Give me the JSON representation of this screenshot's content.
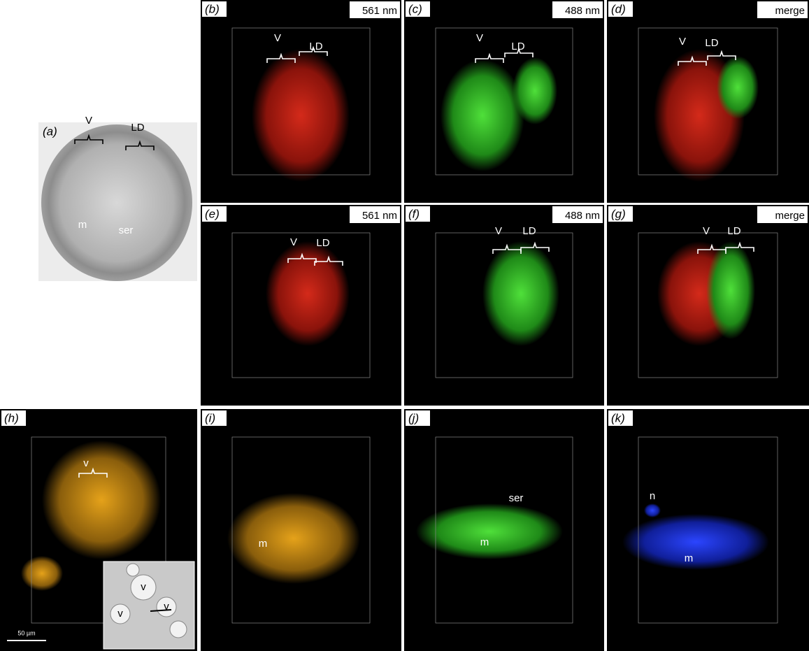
{
  "panels": [
    {
      "label": "(a)",
      "annotations": [
        "V",
        "LD",
        "m",
        "ser"
      ]
    },
    {
      "label": "(b)",
      "caption": "561 nm",
      "annotations": [
        "V",
        "LD"
      ]
    },
    {
      "label": "(c)",
      "caption": "488 nm",
      "annotations": [
        "V",
        "LD"
      ]
    },
    {
      "label": "(d)",
      "caption": "merge",
      "annotations": [
        "V",
        "LD"
      ]
    },
    {
      "label": "(e)",
      "caption": "561 nm",
      "annotations": [
        "V",
        "LD"
      ]
    },
    {
      "label": "(f)",
      "caption": "488 nm",
      "annotations": [
        "V",
        "LD"
      ]
    },
    {
      "label": "(g)",
      "caption": "merge",
      "annotations": [
        "V",
        "LD"
      ]
    },
    {
      "label": "(h)",
      "annotations": [
        "v",
        "v",
        "v",
        "v"
      ],
      "scale_bar": "50 µm"
    },
    {
      "label": "(i)",
      "annotations": [
        "m"
      ]
    },
    {
      "label": "(j)",
      "annotations": [
        "ser",
        "m"
      ]
    },
    {
      "label": "(k)",
      "annotations": [
        "n",
        "m"
      ]
    }
  ]
}
